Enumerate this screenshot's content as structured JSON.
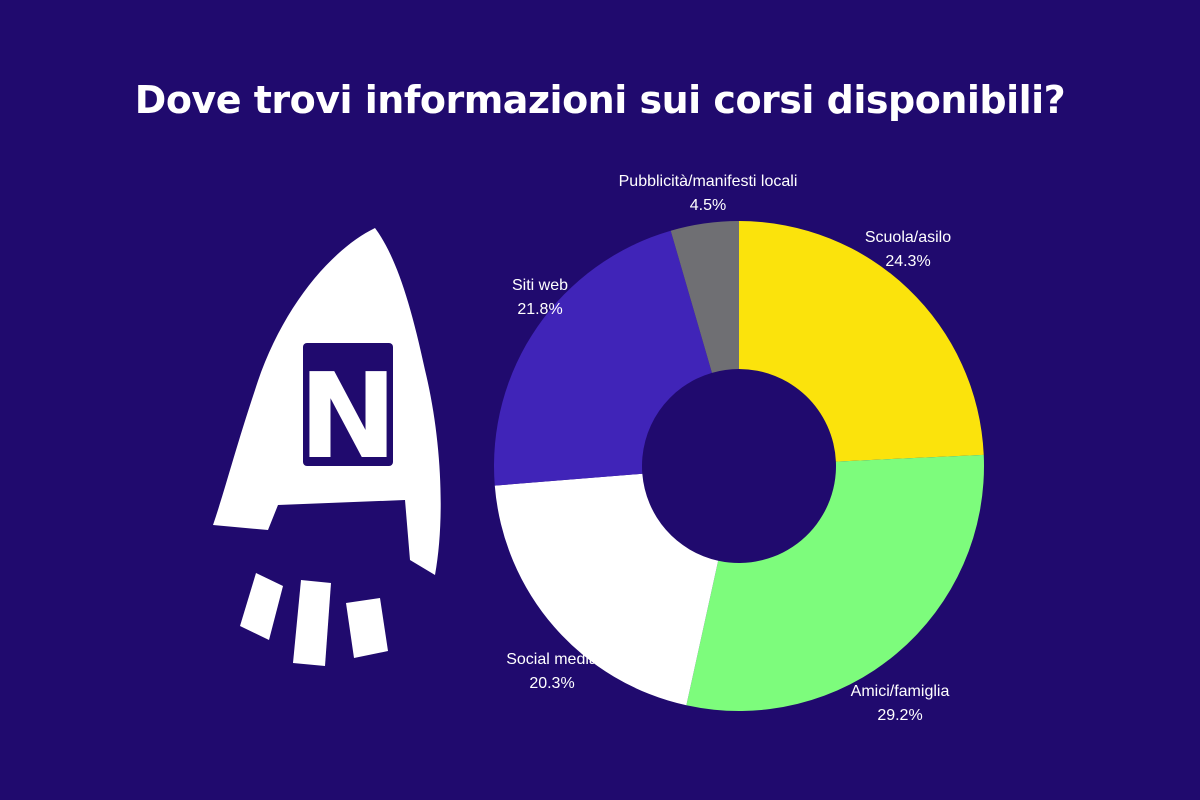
{
  "title": "Dove trovi informazioni sui corsi disponibili?",
  "logo": {
    "letter": "N"
  },
  "colors": {
    "background": "#200a6e",
    "scuola": "#fbe30c",
    "amici": "#7dfc7c",
    "social": "#ffffff",
    "siti": "#4024b8",
    "pubblicita": "#6f6f73"
  },
  "chart_data": {
    "type": "pie",
    "donut": true,
    "title": "Dove trovi informazioni sui corsi disponibili?",
    "categories": [
      "Scuola/asilo",
      "Amici/famiglia",
      "Social media",
      "Siti web",
      "Pubblicità/manifesti locali"
    ],
    "values": [
      24.3,
      29.2,
      20.3,
      21.8,
      4.5
    ],
    "value_labels": [
      "24.3%",
      "29.2%",
      "20.3%",
      "21.8%",
      "4.5%"
    ],
    "colors": [
      "#fbe30c",
      "#7dfc7c",
      "#ffffff",
      "#4024b8",
      "#6f6f73"
    ],
    "start": "top",
    "direction": "clockwise",
    "legend": "none"
  }
}
